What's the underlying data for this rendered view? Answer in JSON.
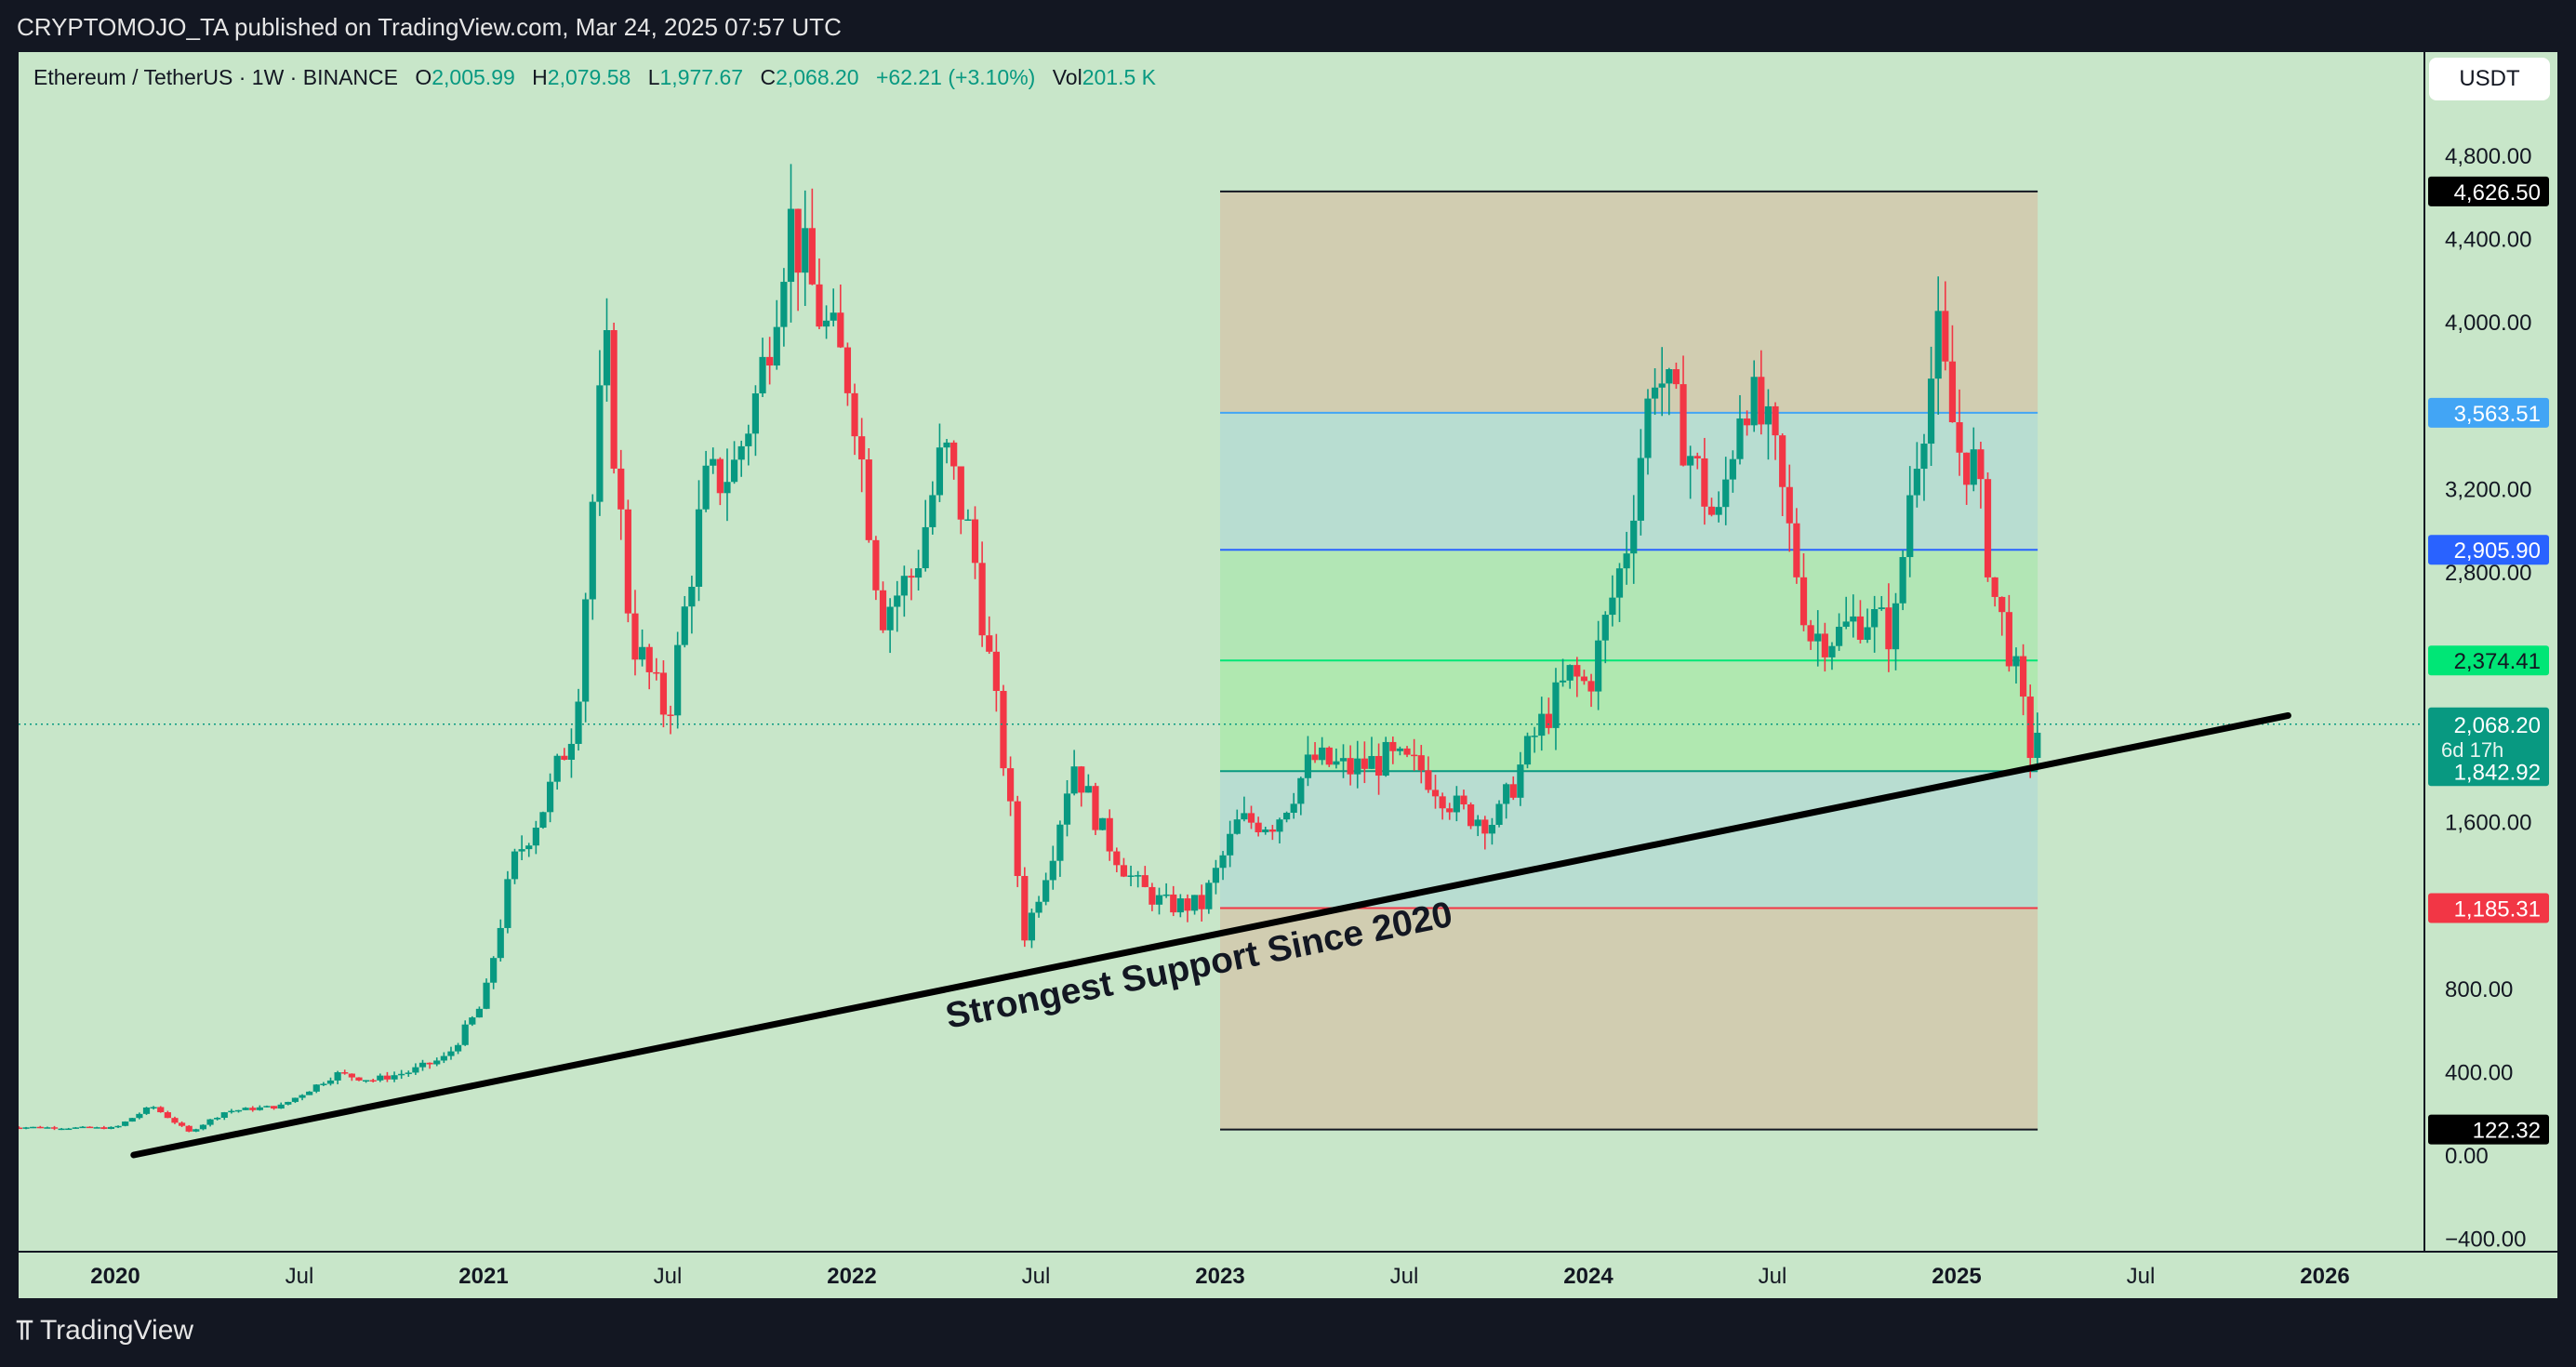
{
  "header": {
    "published_by": "CRYPTOMOJO_TA published on TradingView.com, Mar 24, 2025 07:57 UTC"
  },
  "legend": {
    "symbol": "Ethereum / TetherUS · 1W · BINANCE",
    "open_label": "O",
    "open": "2,005.99",
    "high_label": "H",
    "high": "2,079.58",
    "low_label": "L",
    "low": "1,977.67",
    "close_label": "C",
    "close": "2,068.20",
    "change": "+62.21 (+3.10%)",
    "vol_label": "Vol",
    "vol": "201.5 K"
  },
  "currency": "USDT",
  "footer": {
    "brand": "TradingView"
  },
  "colors": {
    "background": "#c8e6c9",
    "up": "#089981",
    "down": "#f23645",
    "trendline": "#000000",
    "blue_line": "#2962ff",
    "light_blue": "#42a5f5",
    "green_line": "#00e676",
    "red_line": "#f23645"
  },
  "chart_data": {
    "type": "candlestick",
    "title": "",
    "symbol": "ETHUSDT",
    "interval": "1W",
    "exchange": "BINANCE",
    "ylim": [
      -400,
      5400
    ],
    "y_ticks": [
      "4,800.00",
      "4,400.00",
      "4,000.00",
      "3,200.00",
      "2,800.00",
      "1,600.00",
      "800.00",
      "400.00",
      "0.00",
      "−400.00"
    ],
    "y_tick_values": [
      4800,
      4400,
      4000,
      3200,
      2800,
      1600,
      800,
      400,
      0,
      -400
    ],
    "x_ticks": [
      {
        "label": "2020",
        "t": 2020.0,
        "bold": true
      },
      {
        "label": "Jul",
        "t": 2020.5,
        "bold": false
      },
      {
        "label": "2021",
        "t": 2021.0,
        "bold": true
      },
      {
        "label": "Jul",
        "t": 2021.5,
        "bold": false
      },
      {
        "label": "2022",
        "t": 2022.0,
        "bold": true
      },
      {
        "label": "Jul",
        "t": 2022.5,
        "bold": false
      },
      {
        "label": "2023",
        "t": 2023.0,
        "bold": true
      },
      {
        "label": "Jul",
        "t": 2023.5,
        "bold": false
      },
      {
        "label": "2024",
        "t": 2024.0,
        "bold": true
      },
      {
        "label": "Jul",
        "t": 2024.5,
        "bold": false
      },
      {
        "label": "2025",
        "t": 2025.0,
        "bold": true
      },
      {
        "label": "Jul",
        "t": 2025.5,
        "bold": false
      },
      {
        "label": "2026",
        "t": 2026.0,
        "bold": true
      }
    ],
    "price_anchors": [
      [
        2019.7,
        135
      ],
      [
        2019.9,
        130
      ],
      [
        2020.0,
        130
      ],
      [
        2020.1,
        235
      ],
      [
        2020.2,
        110
      ],
      [
        2020.3,
        210
      ],
      [
        2020.45,
        235
      ],
      [
        2020.6,
        390
      ],
      [
        2020.7,
        360
      ],
      [
        2020.8,
        400
      ],
      [
        2020.9,
        470
      ],
      [
        2021.0,
        730
      ],
      [
        2021.08,
        1400
      ],
      [
        2021.17,
        1700
      ],
      [
        2021.25,
        2100
      ],
      [
        2021.33,
        3900
      ],
      [
        2021.4,
        2500
      ],
      [
        2021.5,
        2100
      ],
      [
        2021.6,
        3200
      ],
      [
        2021.68,
        3300
      ],
      [
        2021.75,
        3700
      ],
      [
        2021.83,
        4500
      ],
      [
        2021.92,
        4000
      ],
      [
        2022.0,
        3700
      ],
      [
        2022.08,
        2600
      ],
      [
        2022.17,
        2800
      ],
      [
        2022.25,
        3400
      ],
      [
        2022.33,
        2900
      ],
      [
        2022.42,
        1800
      ],
      [
        2022.47,
        1050
      ],
      [
        2022.55,
        1500
      ],
      [
        2022.6,
        1900
      ],
      [
        2022.68,
        1550
      ],
      [
        2022.77,
        1300
      ],
      [
        2022.85,
        1200
      ],
      [
        2022.95,
        1200
      ],
      [
        2023.05,
        1600
      ],
      [
        2023.15,
        1600
      ],
      [
        2023.25,
        1900
      ],
      [
        2023.35,
        1850
      ],
      [
        2023.45,
        1900
      ],
      [
        2023.55,
        1850
      ],
      [
        2023.65,
        1650
      ],
      [
        2023.75,
        1600
      ],
      [
        2023.85,
        2000
      ],
      [
        2023.95,
        2300
      ],
      [
        2024.0,
        2250
      ],
      [
        2024.1,
        2900
      ],
      [
        2024.18,
        3800
      ],
      [
        2024.25,
        3500
      ],
      [
        2024.35,
        3000
      ],
      [
        2024.42,
        3700
      ],
      [
        2024.5,
        3400
      ],
      [
        2024.6,
        2500
      ],
      [
        2024.68,
        2500
      ],
      [
        2024.75,
        2600
      ],
      [
        2024.83,
        2500
      ],
      [
        2024.88,
        3300
      ],
      [
        2024.95,
        3900
      ],
      [
        2025.0,
        3400
      ],
      [
        2025.05,
        3300
      ],
      [
        2025.1,
        2700
      ],
      [
        2025.15,
        2400
      ],
      [
        2025.2,
        1950
      ],
      [
        2025.225,
        2068
      ]
    ],
    "fib_rect": {
      "t_start": 2023.0,
      "t_end": 2025.22,
      "top": 4626.5,
      "bottom": 122.32
    },
    "fib_levels": [
      {
        "value": 4626.5,
        "label": "4,626.50",
        "line": "#131722",
        "bg": "#000000",
        "fg": "#ffffff"
      },
      {
        "value": 3563.51,
        "label": "3,563.51",
        "line": "#42a5f5",
        "bg": "#42a5f5",
        "fg": "#ffffff"
      },
      {
        "value": 2905.9,
        "label": "2,905.90",
        "line": "#2962ff",
        "bg": "#2962ff",
        "fg": "#ffffff"
      },
      {
        "value": 2374.41,
        "label": "2,374.41",
        "line": "#00e676",
        "bg": "#00e676",
        "fg": "#131722"
      },
      {
        "value": 1842.92,
        "label": "1,842.92",
        "line": "#089981",
        "bg": "#089981",
        "fg": "#ffffff"
      },
      {
        "value": 1185.31,
        "label": "1,185.31",
        "line": "#f23645",
        "bg": "#f23645",
        "fg": "#ffffff"
      },
      {
        "value": 122.32,
        "label": "122.32",
        "line": "#131722",
        "bg": "#000000",
        "fg": "#ffffff"
      }
    ],
    "current_price": {
      "value": 2068.2,
      "label": "2,068.20",
      "countdown": "6d 17h"
    },
    "trendline": {
      "t1": 2020.05,
      "p1": 0,
      "t2": 2025.9,
      "p2": 2110
    },
    "annotation": {
      "text": "Strongest Support Since 2020"
    }
  }
}
